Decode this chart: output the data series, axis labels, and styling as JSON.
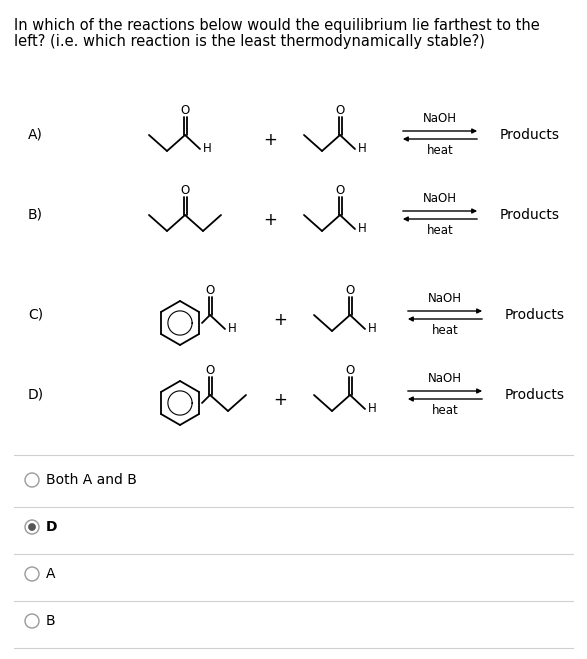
{
  "title_line1": "In which of the reactions below would the equilibrium lie farthest to the",
  "title_line2": "left? (i.e. which reaction is the least thermodynamically stable?)",
  "background_color": "#ffffff",
  "text_color": "#000000",
  "naoh": "NaOH",
  "heat": "heat",
  "products": "Products",
  "labels": [
    "A)",
    "B)",
    "C)",
    "D)"
  ],
  "answer_options": [
    "Both A and B",
    "D",
    "A",
    "B"
  ],
  "answer_selected": 1,
  "font_size_title": 10.5,
  "font_size_label": 10,
  "font_size_mol": 8.5,
  "font_size_ans": 10
}
